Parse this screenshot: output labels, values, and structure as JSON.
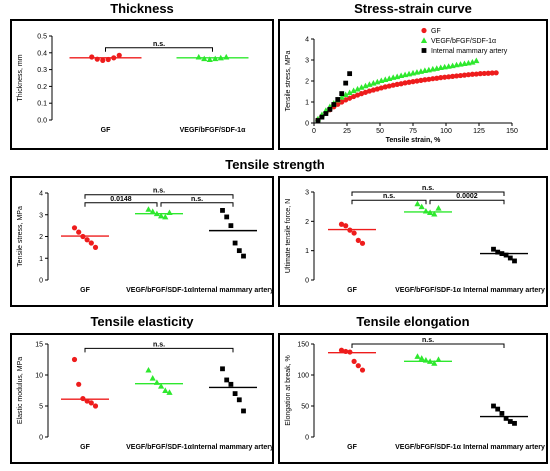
{
  "sections": {
    "thickness": "Thickness",
    "stress_strain": "Stress-strain curve",
    "tensile_strength": "Tensile strength",
    "tensile_elasticity": "Tensile elasticity",
    "tensile_elongation": "Tensile elongation"
  },
  "colors": {
    "GF": "#ee1c1c",
    "VEGF": "#2ee82e",
    "IMA": "#000000"
  },
  "chart_data": [
    {
      "id": "thickness",
      "type": "scatter",
      "ylabel": "Thickness, mm",
      "ylim": [
        0,
        0.5
      ],
      "yticks": [
        "0.0",
        "0.1",
        "0.2",
        "0.3",
        "0.4",
        "0.5"
      ],
      "categories": [
        "GF",
        "VEGF/bFGF/SDF-1α"
      ],
      "series": [
        {
          "category": "GF",
          "color": "#ee1c1c",
          "marker": "circle",
          "values": [
            0.375,
            0.362,
            0.355,
            0.36,
            0.37,
            0.385
          ],
          "mean": 0.37
        },
        {
          "category": "VEGF/bFGF/SDF-1α",
          "color": "#2ee82e",
          "marker": "triangle",
          "values": [
            0.375,
            0.365,
            0.36,
            0.365,
            0.37,
            0.375
          ],
          "mean": 0.37
        }
      ],
      "brackets": [
        {
          "from": 0,
          "to": 1,
          "label": "n.s.",
          "y": 0.43
        }
      ]
    },
    {
      "id": "strength",
      "type": "scatter",
      "ylabel": "Tensile stress, MPa",
      "ylim": [
        0,
        4
      ],
      "yticks": [
        "0",
        "1",
        "2",
        "3",
        "4"
      ],
      "categories": [
        "GF",
        "VEGF/bFGF/SDF-1α",
        "Internal mammary artery"
      ],
      "series": [
        {
          "category": "GF",
          "color": "#ee1c1c",
          "marker": "circle",
          "values": [
            2.4,
            2.2,
            2.0,
            1.85,
            1.7,
            1.5
          ],
          "mean": 2.02
        },
        {
          "category": "VEGF/bFGF/SDF-1α",
          "color": "#2ee82e",
          "marker": "triangle",
          "values": [
            3.25,
            3.15,
            3.05,
            2.95,
            2.9,
            3.1
          ],
          "mean": 3.05
        },
        {
          "category": "Internal mammary artery",
          "color": "#000000",
          "marker": "square",
          "values": [
            3.2,
            2.9,
            2.5,
            1.7,
            1.35,
            1.1
          ],
          "mean": 2.27
        }
      ],
      "brackets": [
        {
          "from": 0,
          "to": 2,
          "label": "n.s.",
          "y": 3.92
        },
        {
          "from": 0,
          "to": 1,
          "label": "0.0148",
          "y": 3.55
        },
        {
          "from": 1,
          "to": 2,
          "label": "n.s.",
          "y": 3.55
        }
      ]
    },
    {
      "id": "force",
      "type": "scatter",
      "ylabel": "Ultimate tensile force, N",
      "ylim": [
        0,
        3
      ],
      "yticks": [
        "0",
        "1",
        "2",
        "3"
      ],
      "categories": [
        "GF",
        "VEGF/bFGF/SDF-1α",
        "Internal mammary artery"
      ],
      "series": [
        {
          "category": "GF",
          "color": "#ee1c1c",
          "marker": "circle",
          "values": [
            1.9,
            1.85,
            1.7,
            1.6,
            1.35,
            1.25
          ],
          "mean": 1.72
        },
        {
          "category": "VEGF/bFGF/SDF-1α",
          "color": "#2ee82e",
          "marker": "triangle",
          "values": [
            2.6,
            2.5,
            2.35,
            2.3,
            2.25,
            2.45
          ],
          "mean": 2.32
        },
        {
          "category": "Internal mammary artery",
          "color": "#000000",
          "marker": "square",
          "values": [
            1.05,
            0.95,
            0.9,
            0.85,
            0.75,
            0.65
          ],
          "mean": 0.9
        }
      ],
      "brackets": [
        {
          "from": 0,
          "to": 2,
          "label": "n.s.",
          "y": 3.0
        },
        {
          "from": 0,
          "to": 1,
          "label": "n.s.",
          "y": 2.72
        },
        {
          "from": 1,
          "to": 2,
          "label": "0.0002",
          "y": 2.72
        }
      ]
    },
    {
      "id": "elasticity",
      "type": "scatter",
      "ylabel": "Elastic modulus, MPa",
      "ylim": [
        0,
        15
      ],
      "yticks": [
        "0",
        "5",
        "10",
        "15"
      ],
      "categories": [
        "GF",
        "VEGF/bFGF/SDF-1α",
        "Internal mammary artery"
      ],
      "series": [
        {
          "category": "GF",
          "color": "#ee1c1c",
          "marker": "circle",
          "values": [
            12.5,
            8.5,
            6.2,
            5.8,
            5.5,
            5.0
          ],
          "mean": 6.1
        },
        {
          "category": "VEGF/bFGF/SDF-1α",
          "color": "#2ee82e",
          "marker": "triangle",
          "values": [
            10.8,
            9.5,
            8.8,
            8.2,
            7.5,
            7.2
          ],
          "mean": 8.6
        },
        {
          "category": "Internal mammary artery",
          "color": "#000000",
          "marker": "square",
          "values": [
            11.0,
            9.2,
            8.5,
            7.0,
            6.0,
            4.2
          ],
          "mean": 8.0
        }
      ],
      "brackets": [
        {
          "from": 0,
          "to": 2,
          "label": "n.s.",
          "y": 14.3
        }
      ]
    },
    {
      "id": "elongation",
      "type": "scatter",
      "ylabel": "Elongation at break, %",
      "ylim": [
        0,
        150
      ],
      "yticks": [
        "0",
        "50",
        "100",
        "150"
      ],
      "categories": [
        "GF",
        "VEGF/bFGF/SDF-1α",
        "Internal mammary artery"
      ],
      "series": [
        {
          "category": "GF",
          "color": "#ee1c1c",
          "marker": "circle",
          "values": [
            140,
            138,
            137,
            122,
            115,
            108
          ],
          "mean": 136
        },
        {
          "category": "VEGF/bFGF/SDF-1α",
          "color": "#2ee82e",
          "marker": "triangle",
          "values": [
            130,
            127,
            124,
            122,
            119,
            125
          ],
          "mean": 122
        },
        {
          "category": "Internal mammary artery",
          "color": "#000000",
          "marker": "square",
          "values": [
            50,
            45,
            38,
            30,
            25,
            22
          ],
          "mean": 33
        }
      ],
      "brackets": [
        {
          "from": 0,
          "to": 2,
          "label": "n.s.",
          "y": 150
        }
      ]
    },
    {
      "id": "stress_strain",
      "type": "scatter",
      "xlabel": "Tensile strain, %",
      "ylabel": "Tensile stress, MPa",
      "xlim": [
        0,
        150
      ],
      "ylim": [
        0,
        4
      ],
      "xticks": [
        "0",
        "25",
        "50",
        "75",
        "100",
        "125",
        "150"
      ],
      "yticks": [
        "0",
        "1",
        "2",
        "3",
        "4"
      ],
      "legend_position": "top-right",
      "series": [
        {
          "name": "GF",
          "color": "#ee1c1c",
          "marker": "circle",
          "x": [
            3,
            6,
            9,
            12,
            15,
            18,
            21,
            24,
            27,
            30,
            33,
            36,
            39,
            42,
            45,
            48,
            51,
            54,
            57,
            60,
            63,
            66,
            69,
            72,
            75,
            78,
            81,
            84,
            87,
            90,
            93,
            96,
            99,
            102,
            105,
            108,
            111,
            114,
            117,
            120,
            123,
            126,
            129,
            132,
            135,
            138
          ],
          "y": [
            0.15,
            0.32,
            0.48,
            0.63,
            0.77,
            0.89,
            1.0,
            1.1,
            1.18,
            1.26,
            1.33,
            1.4,
            1.46,
            1.52,
            1.57,
            1.62,
            1.67,
            1.72,
            1.76,
            1.8,
            1.84,
            1.87,
            1.91,
            1.94,
            1.97,
            2.0,
            2.03,
            2.06,
            2.08,
            2.11,
            2.13,
            2.16,
            2.18,
            2.2,
            2.22,
            2.24,
            2.26,
            2.28,
            2.3,
            2.32,
            2.33,
            2.35,
            2.36,
            2.37,
            2.38,
            2.39
          ]
        },
        {
          "name": "VEGF/bFGF/SDF-1α",
          "color": "#2ee82e",
          "marker": "triangle",
          "x": [
            3,
            6,
            9,
            12,
            15,
            18,
            21,
            24,
            27,
            30,
            33,
            36,
            39,
            42,
            45,
            48,
            51,
            54,
            57,
            60,
            63,
            66,
            69,
            72,
            75,
            78,
            81,
            84,
            87,
            90,
            93,
            96,
            99,
            102,
            105,
            108,
            111,
            114,
            117,
            120,
            123
          ],
          "y": [
            0.2,
            0.4,
            0.6,
            0.78,
            0.95,
            1.1,
            1.23,
            1.35,
            1.45,
            1.54,
            1.62,
            1.7,
            1.77,
            1.84,
            1.9,
            1.96,
            2.02,
            2.07,
            2.12,
            2.17,
            2.21,
            2.26,
            2.3,
            2.34,
            2.38,
            2.42,
            2.46,
            2.5,
            2.53,
            2.57,
            2.6,
            2.64,
            2.67,
            2.7,
            2.73,
            2.77,
            2.8,
            2.83,
            2.86,
            2.9,
            2.97
          ]
        },
        {
          "name": "Internal mammary artery",
          "color": "#000000",
          "marker": "square",
          "x": [
            3,
            6,
            9,
            12,
            15,
            18,
            21,
            24,
            27
          ],
          "y": [
            0.12,
            0.28,
            0.45,
            0.65,
            0.88,
            1.12,
            1.4,
            1.9,
            2.35
          ]
        }
      ]
    }
  ]
}
